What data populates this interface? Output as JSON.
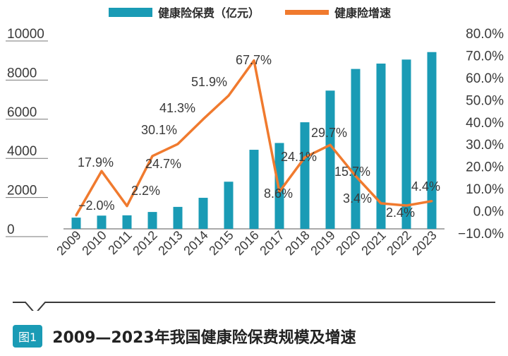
{
  "chart_data": {
    "type": "bar+line",
    "categories": [
      "2009",
      "2010",
      "2011",
      "2012",
      "2013",
      "2014",
      "2015",
      "2016",
      "2017",
      "2018",
      "2019",
      "2020",
      "2021",
      "2022",
      "2023"
    ],
    "series": [
      {
        "name": "健康险保费（亿元）",
        "type": "bar",
        "axis": "left",
        "color": "#1a9bb5",
        "values": [
          574,
          677,
          692,
          863,
          1123,
          1587,
          2410,
          4042,
          4389,
          5448,
          7066,
          8173,
          8447,
          8653,
          9035
        ]
      },
      {
        "name": "健康险增速",
        "type": "line",
        "axis": "right",
        "color": "#f07a2e",
        "values": [
          -2.0,
          17.9,
          2.2,
          24.7,
          30.1,
          41.3,
          51.9,
          67.7,
          8.6,
          24.1,
          29.7,
          15.7,
          3.4,
          2.4,
          4.4
        ],
        "labels": [
          "",
          "17.9%",
          "2.2%",
          "24.7%",
          "30.1%",
          "41.3%",
          "51.9%",
          "67.7%",
          "8.6%",
          "24.1%",
          "29.7%",
          "15.7%",
          "3.4%",
          "2.4%",
          "4.4%"
        ]
      }
    ],
    "extra_label": "−2.0%",
    "left_axis": {
      "ylim": [
        0,
        10000
      ],
      "ticks": [
        "0",
        "2000",
        "4000",
        "6000",
        "8000",
        "10000"
      ]
    },
    "right_axis": {
      "ylim": [
        -10,
        80
      ],
      "ticks": [
        "−10.0%",
        "0.0%",
        "10.0%",
        "20.0%",
        "30.0%",
        "40.0%",
        "50.0%",
        "60.0%",
        "70.0%",
        "80.0%"
      ]
    },
    "grid": false,
    "legend": "top-center"
  },
  "caption": {
    "badge": "图1",
    "title": "2009—2023年我国健康险保费规模及增速"
  }
}
